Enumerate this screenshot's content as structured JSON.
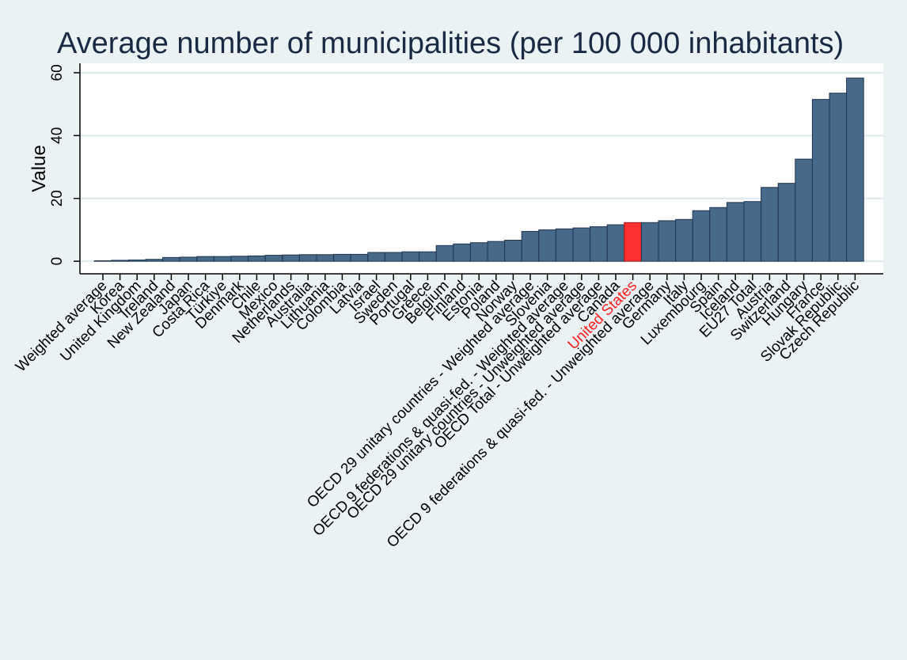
{
  "chart_data": {
    "type": "bar",
    "title": "Average number of municipalities (per 100 000 inhabitants)",
    "ylabel": "Value",
    "xlabel": "",
    "ylim": [
      -4,
      63
    ],
    "yticks": [
      0,
      20,
      40,
      60
    ],
    "grid": true,
    "legend": "none",
    "colors": {
      "bar": "#476a8a",
      "bar_edge": "#1e3450",
      "highlight": "#ff3030",
      "highlight_edge": "#b01010",
      "highlight_label": "#ff2020",
      "grid": "#dde9ec",
      "plot_bg": "#ffffff"
    },
    "highlight": "United States",
    "categories": [
      "Weighted average",
      "Korea",
      "United Kingdom",
      "Ireland",
      "New Zealand",
      "Japan",
      "Costa Rica",
      "Türkiye",
      "Denmark",
      "Chile",
      "Mexico",
      "Netherlands",
      "Australia",
      "Lithuania",
      "Colombia",
      "Latvia",
      "Israel",
      "Sweden",
      "Portugal",
      "Greece",
      "Belgium",
      "Finland",
      "Estonia",
      "Poland",
      "Norway",
      "OECD 29 unitary countries - Weighted average",
      "Slovenia",
      "OECD 9 federations & quasi-fed. - Weighted average",
      "OECD 29 unitary countries - Unweighted average",
      "OECD Total - Unweighted average",
      "Canada",
      "United States",
      "OECD 9 federations & quasi-fed. - Unweighted average",
      "Germany",
      "Italy",
      "Luxembourg",
      "Spain",
      "Iceland",
      "EU27 Total",
      "Austria",
      "Switzerland",
      "Hungary",
      "France",
      "Slovak Republic",
      "Czech Republic"
    ],
    "values": [
      0,
      0.3,
      0.4,
      0.6,
      1.2,
      1.3,
      1.5,
      1.5,
      1.6,
      1.7,
      1.9,
      2.0,
      2.1,
      2.1,
      2.2,
      2.2,
      2.8,
      2.8,
      3.0,
      3.0,
      5.0,
      5.5,
      5.9,
      6.3,
      6.7,
      9.5,
      10.0,
      10.3,
      10.6,
      11.0,
      11.6,
      12.3,
      12.3,
      12.9,
      13.3,
      16.1,
      17.1,
      18.7,
      19.0,
      23.5,
      24.8,
      32.5,
      51.5,
      53.5,
      58.3
    ]
  }
}
